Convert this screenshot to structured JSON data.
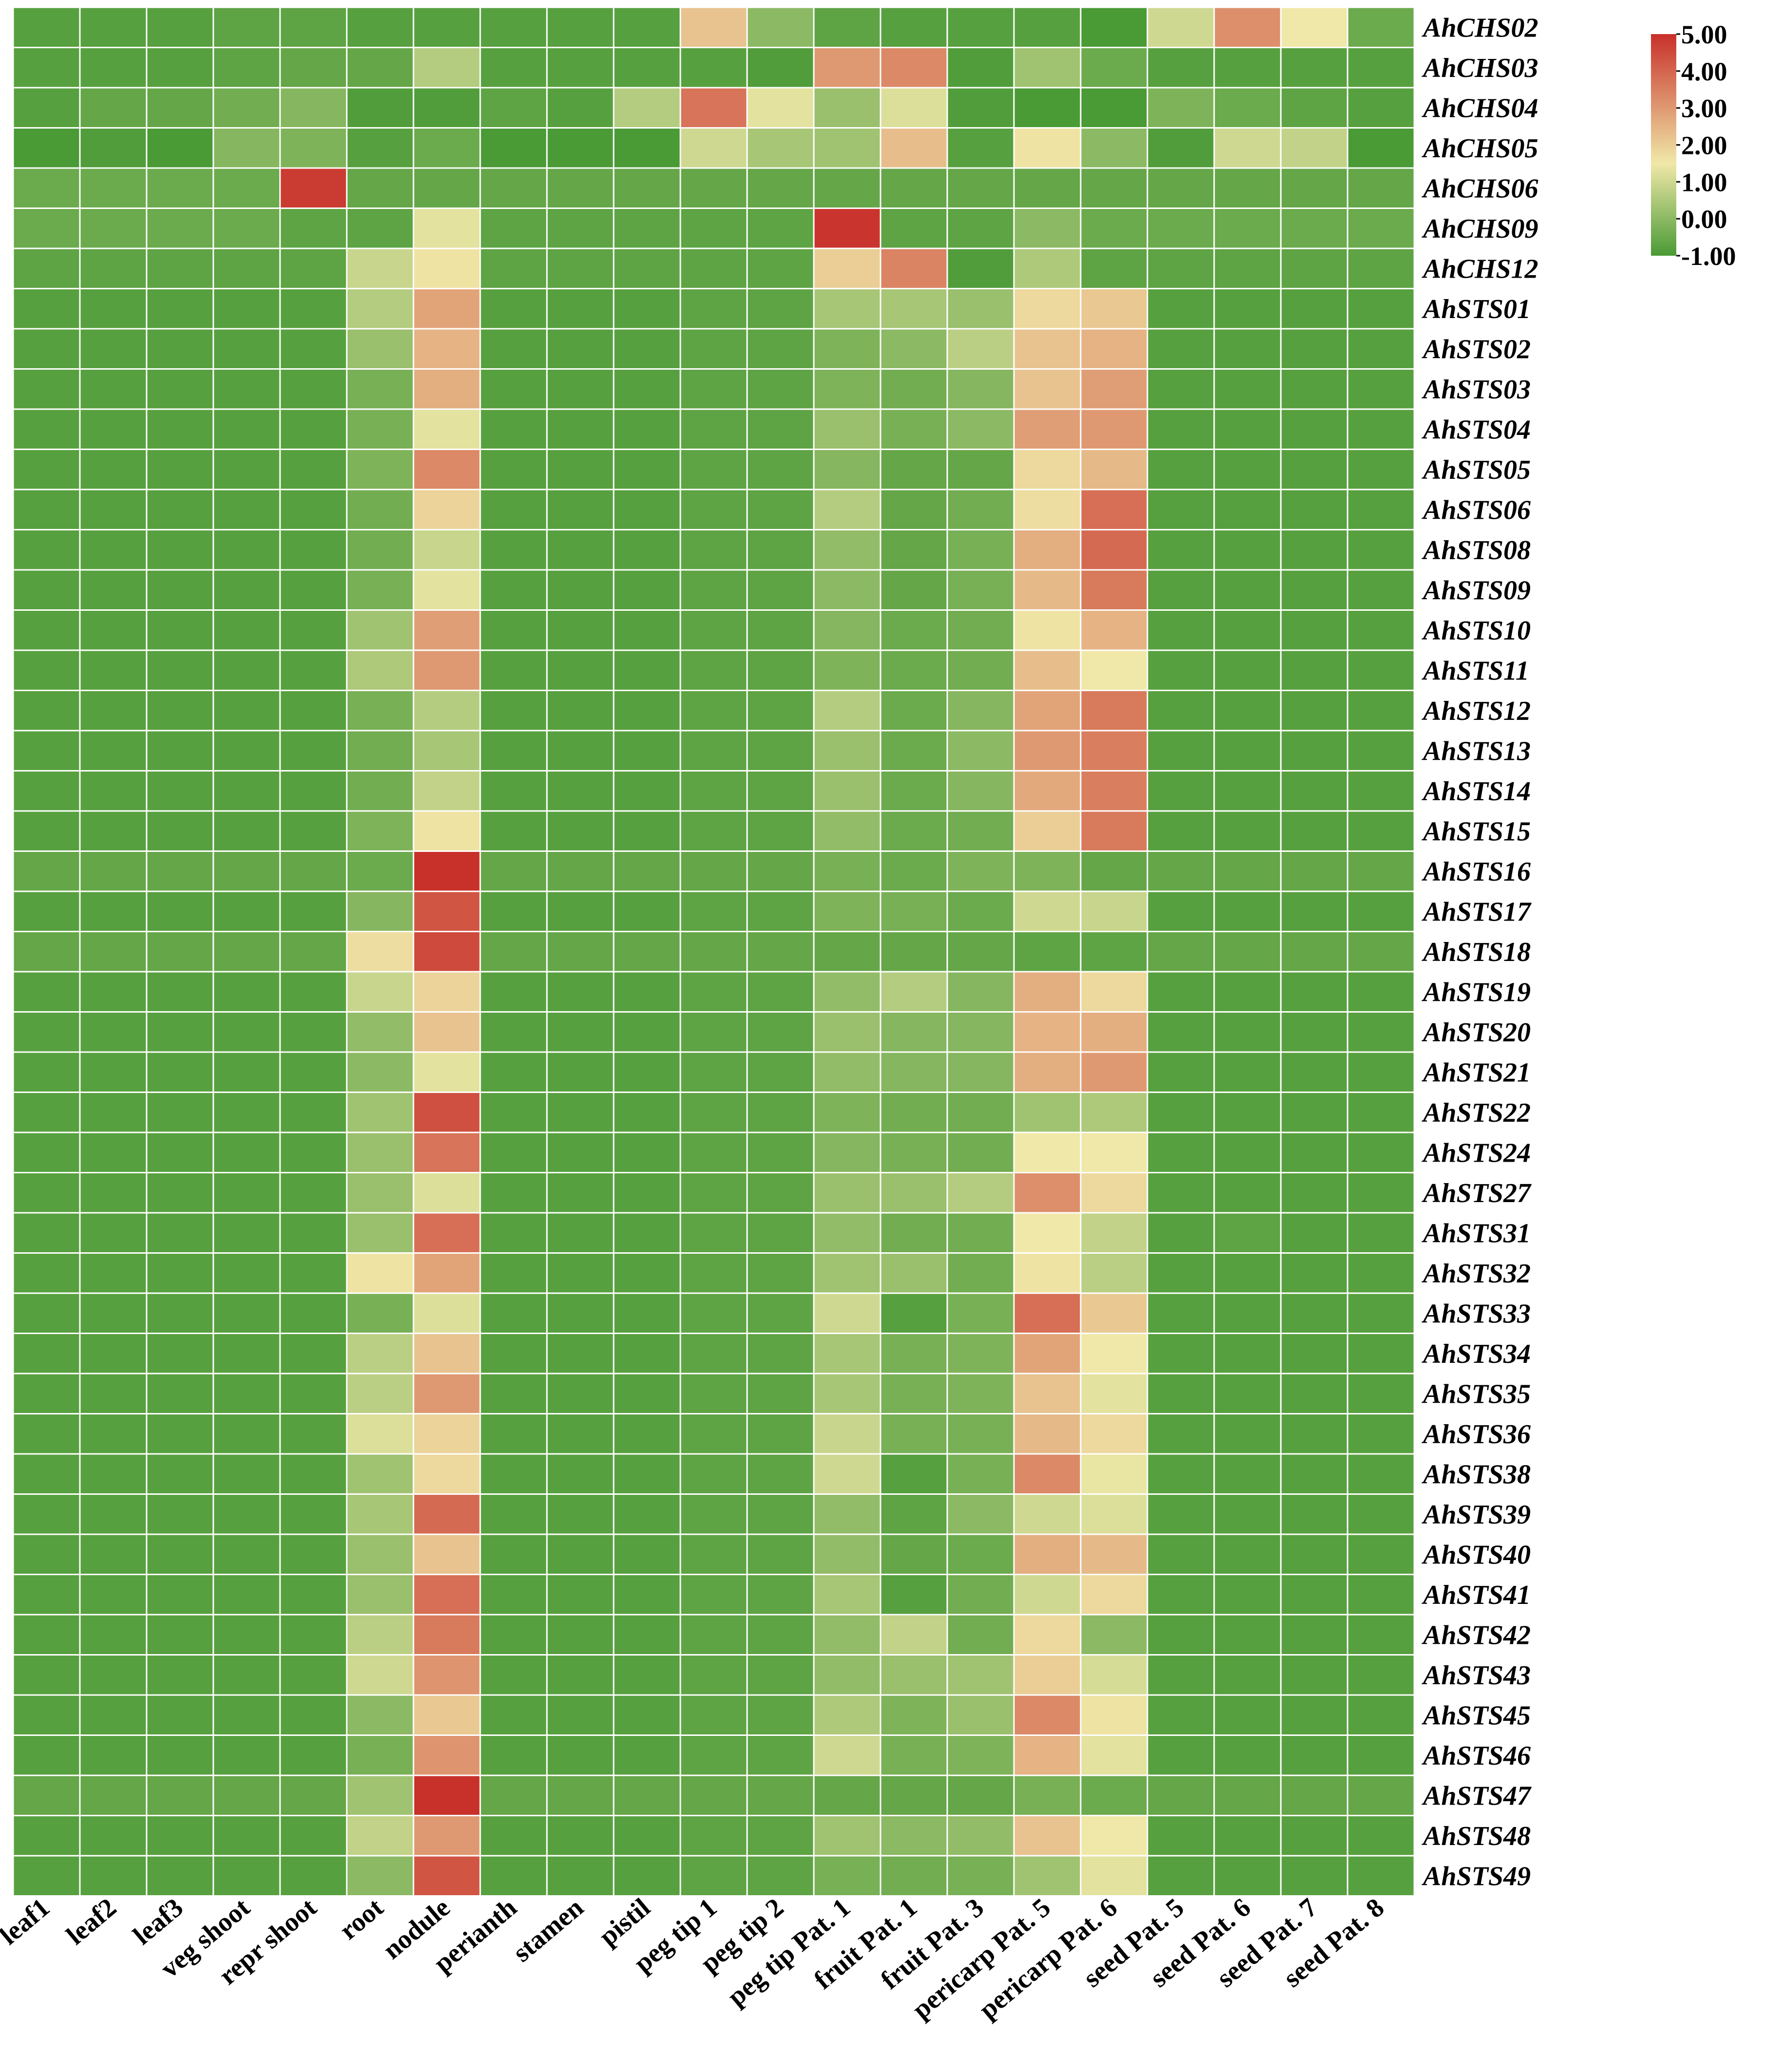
{
  "chart_data": {
    "type": "heatmap",
    "title": "",
    "xlabel": "",
    "ylabel": "",
    "columns": [
      "leaf1",
      "leaf2",
      "leaf3",
      "veg shoot",
      "repr shoot",
      "root",
      "nodule",
      "perianth",
      "stamen",
      "pistil",
      "peg tip 1",
      "peg tip 2",
      "peg tip Pat. 1",
      "fruit Pat. 1",
      "fruit Pat. 3",
      "pericarp Pat. 5",
      "pericarp Pat. 6",
      "seed Pat. 5",
      "seed Pat. 6",
      "seed Pat. 7",
      "seed Pat. 8"
    ],
    "rows": [
      "AhCHS02",
      "AhCHS03",
      "AhCHS04",
      "AhCHS05",
      "AhCHS06",
      "AhCHS09",
      "AhCHS12",
      "AhSTS01",
      "AhSTS02",
      "AhSTS03",
      "AhSTS04",
      "AhSTS05",
      "AhSTS06",
      "AhSTS08",
      "AhSTS09",
      "AhSTS10",
      "AhSTS11",
      "AhSTS12",
      "AhSTS13",
      "AhSTS14",
      "AhSTS15",
      "AhSTS16",
      "AhSTS17",
      "AhSTS18",
      "AhSTS19",
      "AhSTS20",
      "AhSTS21",
      "AhSTS22",
      "AhSTS24",
      "AhSTS27",
      "AhSTS31",
      "AhSTS32",
      "AhSTS33",
      "AhSTS34",
      "AhSTS35",
      "AhSTS36",
      "AhSTS38",
      "AhSTS39",
      "AhSTS40",
      "AhSTS41",
      "AhSTS42",
      "AhSTS43",
      "AhSTS45",
      "AhSTS46",
      "AhSTS47",
      "AhSTS48",
      "AhSTS49"
    ],
    "values": [
      [
        -0.8,
        -0.8,
        -0.8,
        -0.7,
        -0.7,
        -0.8,
        -0.8,
        -0.8,
        -0.8,
        -0.8,
        2.2,
        0.0,
        -0.7,
        -0.8,
        -0.8,
        -0.8,
        -1.0,
        1.0,
        3.2,
        1.5,
        -0.5
      ],
      [
        -0.8,
        -0.8,
        -0.8,
        -0.7,
        -0.6,
        -0.6,
        0.6,
        -0.8,
        -0.8,
        -0.8,
        -0.8,
        -0.9,
        3.0,
        3.3,
        -0.9,
        0.3,
        -0.5,
        -0.8,
        -0.8,
        -0.8,
        -0.8
      ],
      [
        -0.8,
        -0.6,
        -0.6,
        -0.4,
        -0.1,
        -0.9,
        -0.9,
        -0.7,
        -0.8,
        0.6,
        3.7,
        1.3,
        0.2,
        1.2,
        -0.9,
        -1.0,
        -1.0,
        -0.2,
        -0.5,
        -0.7,
        -0.8
      ],
      [
        -1.0,
        -0.9,
        -1.0,
        -0.1,
        -0.2,
        -0.8,
        -0.5,
        -1.0,
        -1.0,
        -1.0,
        1.0,
        0.4,
        0.3,
        2.3,
        -0.8,
        1.6,
        0.0,
        -0.9,
        1.0,
        0.8,
        -1.0
      ],
      [
        -0.5,
        -0.5,
        -0.5,
        -0.5,
        4.8,
        -0.6,
        -0.6,
        -0.6,
        -0.6,
        -0.6,
        -0.6,
        -0.6,
        -0.6,
        -0.6,
        -0.6,
        -0.6,
        -0.6,
        -0.6,
        -0.6,
        -0.6,
        -0.6
      ],
      [
        -0.5,
        -0.5,
        -0.5,
        -0.5,
        -0.7,
        -0.7,
        1.3,
        -0.7,
        -0.7,
        -0.7,
        -0.7,
        -0.7,
        4.9,
        -0.7,
        -0.7,
        0.0,
        -0.5,
        -0.5,
        -0.5,
        -0.5,
        -0.5
      ],
      [
        -0.7,
        -0.7,
        -0.7,
        -0.7,
        -0.7,
        0.9,
        1.6,
        -0.7,
        -0.7,
        -0.7,
        -0.7,
        -0.7,
        2.0,
        3.4,
        -0.9,
        0.5,
        -0.7,
        -0.7,
        -0.7,
        -0.7,
        -0.7
      ],
      [
        -0.8,
        -0.8,
        -0.8,
        -0.8,
        -0.8,
        0.6,
        2.8,
        -0.8,
        -0.8,
        -0.8,
        -0.7,
        -0.7,
        0.4,
        0.4,
        0.2,
        1.8,
        2.1,
        -0.8,
        -0.8,
        -0.8,
        -0.8
      ],
      [
        -0.8,
        -0.8,
        -0.8,
        -0.8,
        -0.8,
        0.2,
        2.5,
        -0.8,
        -0.8,
        -0.8,
        -0.7,
        -0.7,
        -0.2,
        0.0,
        0.7,
        2.2,
        2.5,
        -0.8,
        -0.8,
        -0.8,
        -0.8
      ],
      [
        -0.8,
        -0.8,
        -0.8,
        -0.8,
        -0.8,
        -0.3,
        2.6,
        -0.8,
        -0.8,
        -0.8,
        -0.7,
        -0.7,
        -0.2,
        -0.4,
        -0.1,
        2.2,
        2.9,
        -0.8,
        -0.8,
        -0.8,
        -0.8
      ],
      [
        -0.8,
        -0.8,
        -0.8,
        -0.8,
        -0.8,
        -0.3,
        1.3,
        -0.8,
        -0.8,
        -0.8,
        -0.7,
        -0.7,
        0.2,
        -0.3,
        0.0,
        2.9,
        3.0,
        -0.8,
        -0.8,
        -0.8,
        -0.8
      ],
      [
        -0.8,
        -0.8,
        -0.8,
        -0.8,
        -0.8,
        -0.2,
        3.3,
        -0.8,
        -0.8,
        -0.8,
        -0.7,
        -0.7,
        -0.1,
        -0.6,
        -0.6,
        1.8,
        2.4,
        -0.8,
        -0.8,
        -0.8,
        -0.8
      ],
      [
        -0.8,
        -0.8,
        -0.8,
        -0.8,
        -0.8,
        -0.4,
        1.9,
        -0.8,
        -0.8,
        -0.8,
        -0.7,
        -0.7,
        0.6,
        -0.6,
        -0.4,
        1.7,
        3.8,
        -0.8,
        -0.8,
        -0.8,
        -0.8
      ],
      [
        -0.8,
        -0.8,
        -0.8,
        -0.8,
        -0.8,
        -0.4,
        0.9,
        -0.8,
        -0.8,
        -0.8,
        -0.7,
        -0.7,
        0.1,
        -0.6,
        -0.3,
        2.6,
        3.9,
        -0.8,
        -0.8,
        -0.8,
        -0.8
      ],
      [
        -0.8,
        -0.8,
        -0.8,
        -0.8,
        -0.8,
        -0.3,
        1.3,
        -0.8,
        -0.8,
        -0.8,
        -0.7,
        -0.7,
        0.0,
        -0.6,
        -0.3,
        2.4,
        3.6,
        -0.8,
        -0.8,
        -0.8,
        -0.8
      ],
      [
        -0.8,
        -0.8,
        -0.8,
        -0.8,
        -0.8,
        0.3,
        2.9,
        -0.8,
        -0.8,
        -0.8,
        -0.7,
        -0.7,
        -0.1,
        -0.5,
        -0.4,
        1.6,
        2.5,
        -0.8,
        -0.8,
        -0.8,
        -0.8
      ],
      [
        -0.8,
        -0.8,
        -0.8,
        -0.8,
        -0.8,
        0.5,
        3.0,
        -0.8,
        -0.8,
        -0.8,
        -0.7,
        -0.7,
        -0.2,
        -0.5,
        -0.4,
        2.3,
        1.5,
        -0.8,
        -0.8,
        -0.8,
        -0.8
      ],
      [
        -0.8,
        -0.8,
        -0.8,
        -0.8,
        -0.8,
        -0.3,
        0.6,
        -0.8,
        -0.8,
        -0.8,
        -0.7,
        -0.7,
        0.6,
        -0.5,
        -0.1,
        2.8,
        3.6,
        -0.8,
        -0.8,
        -0.8,
        -0.8
      ],
      [
        -0.8,
        -0.8,
        -0.8,
        -0.8,
        -0.8,
        -0.4,
        0.4,
        -0.8,
        -0.8,
        -0.8,
        -0.7,
        -0.7,
        0.2,
        -0.5,
        0.0,
        3.0,
        3.5,
        -0.8,
        -0.8,
        -0.8,
        -0.8
      ],
      [
        -0.8,
        -0.8,
        -0.8,
        -0.8,
        -0.8,
        -0.4,
        0.8,
        -0.8,
        -0.8,
        -0.8,
        -0.7,
        -0.7,
        0.2,
        -0.5,
        -0.1,
        2.7,
        3.5,
        -0.8,
        -0.8,
        -0.8,
        -0.8
      ],
      [
        -0.8,
        -0.8,
        -0.8,
        -0.8,
        -0.8,
        -0.2,
        1.6,
        -0.8,
        -0.8,
        -0.8,
        -0.7,
        -0.7,
        0.1,
        -0.5,
        -0.4,
        2.0,
        3.6,
        -0.8,
        -0.8,
        -0.8,
        -0.8
      ],
      [
        -0.6,
        -0.6,
        -0.6,
        -0.6,
        -0.6,
        -0.5,
        5.0,
        -0.6,
        -0.6,
        -0.6,
        -0.6,
        -0.6,
        -0.3,
        -0.5,
        -0.2,
        -0.2,
        -0.6,
        -0.6,
        -0.6,
        -0.6,
        -0.6
      ],
      [
        -0.8,
        -0.8,
        -0.8,
        -0.8,
        -0.8,
        -0.1,
        4.3,
        -0.8,
        -0.8,
        -0.8,
        -0.7,
        -0.7,
        -0.2,
        -0.3,
        -0.5,
        1.0,
        0.9,
        -0.8,
        -0.8,
        -0.8,
        -0.8
      ],
      [
        -0.6,
        -0.6,
        -0.6,
        -0.6,
        -0.6,
        1.7,
        4.5,
        -0.6,
        -0.6,
        -0.6,
        -0.6,
        -0.6,
        -0.6,
        -0.6,
        -0.6,
        -0.7,
        -0.7,
        -0.6,
        -0.6,
        -0.6,
        -0.6
      ],
      [
        -0.8,
        -0.8,
        -0.8,
        -0.8,
        -0.8,
        0.9,
        1.9,
        -0.8,
        -0.8,
        -0.8,
        -0.7,
        -0.7,
        0.1,
        0.6,
        -0.1,
        2.6,
        1.8,
        -0.8,
        -0.8,
        -0.8,
        -0.8
      ],
      [
        -0.8,
        -0.8,
        -0.8,
        -0.8,
        -0.8,
        0.1,
        2.2,
        -0.8,
        -0.8,
        -0.8,
        -0.7,
        -0.7,
        0.2,
        -0.1,
        -0.1,
        2.5,
        2.6,
        -0.8,
        -0.8,
        -0.8,
        -0.8
      ],
      [
        -0.8,
        -0.8,
        -0.8,
        -0.8,
        -0.8,
        0.0,
        1.3,
        -0.8,
        -0.8,
        -0.8,
        -0.7,
        -0.7,
        0.1,
        -0.1,
        -0.1,
        2.6,
        3.0,
        -0.8,
        -0.8,
        -0.8,
        -0.8
      ],
      [
        -0.8,
        -0.8,
        -0.8,
        -0.8,
        -0.8,
        0.3,
        4.4,
        -0.8,
        -0.8,
        -0.8,
        -0.7,
        -0.7,
        -0.2,
        -0.4,
        -0.4,
        0.3,
        0.5,
        -0.8,
        -0.8,
        -0.8,
        -0.8
      ],
      [
        -0.8,
        -0.8,
        -0.8,
        -0.8,
        -0.8,
        0.2,
        3.7,
        -0.8,
        -0.8,
        -0.8,
        -0.7,
        -0.7,
        -0.1,
        -0.3,
        -0.4,
        1.5,
        1.5,
        -0.8,
        -0.8,
        -0.8,
        -0.8
      ],
      [
        -0.8,
        -0.8,
        -0.8,
        -0.8,
        -0.8,
        0.2,
        1.2,
        -0.8,
        -0.8,
        -0.8,
        -0.7,
        -0.7,
        0.2,
        0.2,
        0.6,
        3.2,
        1.8,
        -0.8,
        -0.8,
        -0.8,
        -0.8
      ],
      [
        -0.8,
        -0.8,
        -0.8,
        -0.8,
        -0.8,
        0.2,
        3.8,
        -0.8,
        -0.8,
        -0.8,
        -0.7,
        -0.7,
        0.1,
        -0.4,
        -0.4,
        1.5,
        0.8,
        -0.8,
        -0.7,
        -0.8,
        -0.8
      ],
      [
        -0.8,
        -0.8,
        -0.8,
        -0.8,
        -0.8,
        1.6,
        2.8,
        -0.8,
        -0.8,
        -0.8,
        -0.7,
        -0.7,
        0.3,
        0.2,
        -0.4,
        1.6,
        0.7,
        -0.8,
        -0.8,
        -0.8,
        -0.8
      ],
      [
        -0.8,
        -0.8,
        -0.8,
        -0.8,
        -0.8,
        -0.3,
        1.2,
        -0.8,
        -0.8,
        -0.8,
        -0.7,
        -0.7,
        1.0,
        -0.8,
        -0.3,
        3.8,
        2.1,
        -0.8,
        -0.8,
        -0.8,
        -0.8
      ],
      [
        -0.8,
        -0.8,
        -0.8,
        -0.8,
        -0.8,
        0.7,
        2.2,
        -0.8,
        -0.8,
        -0.8,
        -0.7,
        -0.7,
        0.4,
        -0.3,
        -0.2,
        2.8,
        1.5,
        -0.8,
        -0.8,
        -0.8,
        -0.8
      ],
      [
        -0.8,
        -0.8,
        -0.8,
        -0.8,
        -0.8,
        0.7,
        3.0,
        -0.8,
        -0.8,
        -0.8,
        -0.7,
        -0.7,
        0.4,
        -0.3,
        -0.2,
        2.2,
        1.3,
        -0.8,
        -0.8,
        -0.8,
        -0.8
      ],
      [
        -0.8,
        -0.8,
        -0.8,
        -0.8,
        -0.8,
        1.2,
        1.9,
        -0.8,
        -0.8,
        -0.8,
        -0.7,
        -0.7,
        0.9,
        -0.3,
        -0.3,
        2.4,
        1.8,
        -0.8,
        -0.8,
        -0.8,
        -0.8
      ],
      [
        -0.8,
        -0.8,
        -0.8,
        -0.8,
        -0.8,
        0.3,
        1.8,
        -0.8,
        -0.8,
        -0.8,
        -0.7,
        -0.7,
        1.0,
        -0.8,
        -0.3,
        3.3,
        1.4,
        -0.8,
        -0.8,
        -0.8,
        -0.8
      ],
      [
        -0.8,
        -0.8,
        -0.8,
        -0.8,
        -0.8,
        0.4,
        3.9,
        -0.8,
        -0.8,
        -0.8,
        -0.7,
        -0.7,
        0.1,
        -0.7,
        0.0,
        1.0,
        1.2,
        -0.8,
        -0.8,
        -0.8,
        -0.8
      ],
      [
        -0.8,
        -0.8,
        -0.8,
        -0.8,
        -0.8,
        0.2,
        2.2,
        -0.8,
        -0.8,
        -0.8,
        -0.7,
        -0.7,
        0.1,
        -0.6,
        -0.5,
        2.6,
        2.4,
        -0.8,
        -0.8,
        -0.8,
        -0.8
      ],
      [
        -0.8,
        -0.8,
        -0.8,
        -0.8,
        -0.8,
        0.2,
        3.8,
        -0.8,
        -0.8,
        -0.8,
        -0.7,
        -0.7,
        0.4,
        -0.8,
        -0.4,
        1.0,
        1.8,
        -0.8,
        -0.8,
        -0.8,
        -0.8
      ],
      [
        -0.8,
        -0.8,
        -0.8,
        -0.8,
        -0.8,
        0.7,
        3.6,
        -0.8,
        -0.8,
        -0.8,
        -0.7,
        -0.7,
        0.1,
        0.8,
        -0.4,
        1.8,
        0.0,
        -0.8,
        -0.8,
        -0.8,
        -0.8
      ],
      [
        -0.8,
        -0.8,
        -0.8,
        -0.8,
        -0.8,
        1.0,
        3.1,
        -0.8,
        -0.8,
        -0.8,
        -0.7,
        -0.7,
        0.1,
        0.2,
        0.3,
        2.0,
        1.1,
        -0.8,
        -0.8,
        -0.8,
        -0.8
      ],
      [
        -0.8,
        -0.8,
        -0.8,
        -0.8,
        -0.8,
        0.0,
        2.1,
        -0.8,
        -0.8,
        -0.8,
        -0.7,
        -0.7,
        0.5,
        -0.2,
        0.2,
        3.3,
        1.6,
        -0.8,
        -0.8,
        -0.8,
        -0.8
      ],
      [
        -0.8,
        -0.8,
        -0.8,
        -0.8,
        -0.8,
        -0.3,
        3.1,
        -0.8,
        -0.8,
        -0.8,
        -0.7,
        -0.7,
        1.0,
        -0.3,
        -0.2,
        2.5,
        1.3,
        -0.8,
        -0.8,
        -0.8,
        -0.8
      ],
      [
        -0.6,
        -0.6,
        -0.6,
        -0.6,
        -0.6,
        0.3,
        5.0,
        -0.6,
        -0.6,
        -0.6,
        -0.6,
        -0.6,
        -0.6,
        -0.6,
        -0.6,
        -0.3,
        -0.5,
        -0.6,
        -0.6,
        -0.6,
        -0.6
      ],
      [
        -0.8,
        -0.8,
        -0.8,
        -0.8,
        -0.8,
        0.8,
        3.0,
        -0.8,
        -0.8,
        -0.8,
        -0.7,
        -0.7,
        0.3,
        0.0,
        0.1,
        2.2,
        1.5,
        -0.8,
        -0.8,
        -0.8,
        -0.8
      ],
      [
        -0.8,
        -0.8,
        -0.8,
        -0.8,
        -0.8,
        0.0,
        4.3,
        -0.8,
        -0.8,
        -0.8,
        -0.7,
        -0.7,
        -0.3,
        -0.4,
        -0.3,
        0.3,
        1.3,
        -0.8,
        -0.8,
        -0.8,
        -0.8
      ]
    ],
    "color_scale": {
      "min": -1.0,
      "mid": 1.5,
      "max": 5.0,
      "colors": [
        "#4a9a36",
        "#f0e8a8",
        "#c8302a"
      ],
      "ticks": [
        "5.00",
        "4.00",
        "3.00",
        "2.00",
        "1.00",
        "0.00",
        "-1.00"
      ]
    },
    "legend_placement": "top-right",
    "grid": true
  }
}
